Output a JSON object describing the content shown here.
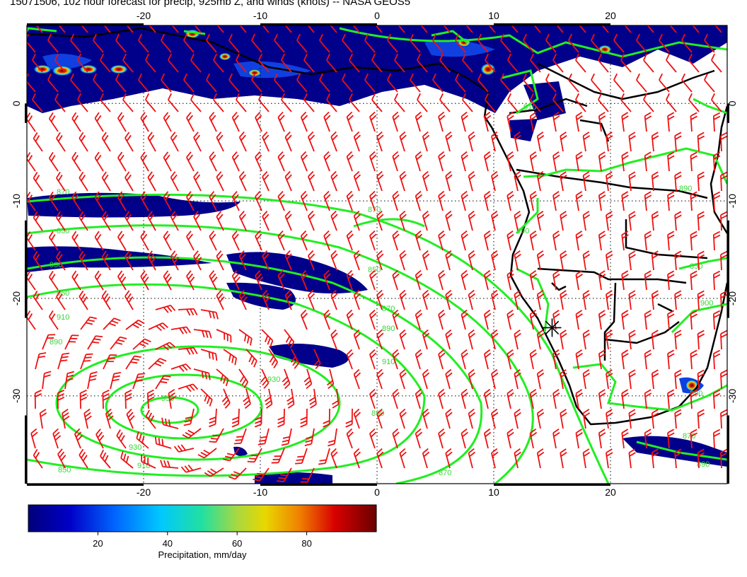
{
  "title": "15071506, 102 hour forecast for precip, 925mb Z, and winds (knots) -- NASA GEOS5",
  "map": {
    "lon_range": [
      -30,
      30
    ],
    "lat_range": [
      -39,
      8
    ],
    "lon_ticks": [
      "-20",
      "-10",
      "0",
      "10",
      "20"
    ],
    "lat_ticks": [
      "0",
      "-10",
      "-20",
      "-30"
    ],
    "grid_lines": true,
    "colors": {
      "contour": "#22ee22",
      "wind_barb": "#ee1111",
      "coast": "#000000",
      "precip_low": "#00007a"
    }
  },
  "contours": {
    "labels": [
      "870",
      "850",
      "930",
      "950",
      "910",
      "890",
      "870",
      "850",
      "870",
      "890",
      "910",
      "930",
      "950",
      "930",
      "910",
      "850",
      "870",
      "890",
      "890",
      "890",
      "850",
      "900",
      "890",
      "870",
      "890",
      "910"
    ]
  },
  "colorbar": {
    "title": "Precipitation, mm/day",
    "ticks": [
      "20",
      "40",
      "60",
      "80"
    ],
    "range": [
      0,
      100
    ]
  },
  "marker": {
    "name": "location-marker",
    "lon": 15,
    "lat": -23
  }
}
